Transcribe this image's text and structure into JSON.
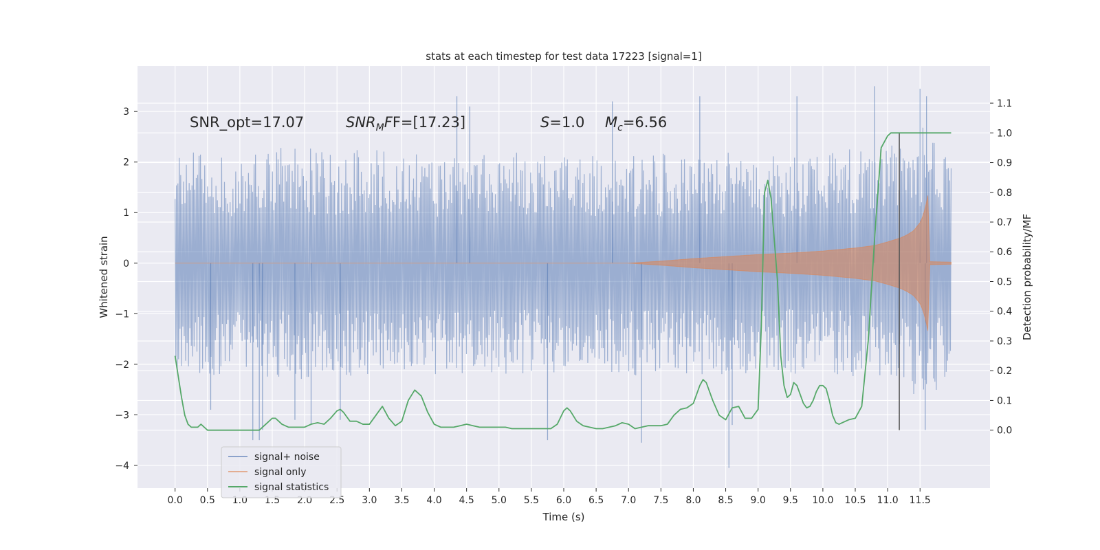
{
  "chart_data": {
    "type": "line",
    "title": "stats at each timestep for test data 17223 [signal=1]",
    "xlabel": "Time (s)",
    "ylabel": "Whitened strain",
    "ylabel_right": "Detection probability/MF",
    "xlim": [
      -0.58,
      12.58
    ],
    "ylim": [
      -4.45,
      3.9
    ],
    "ylim_right": [
      -0.195,
      1.225
    ],
    "x_ticks": [
      0.0,
      0.5,
      1.0,
      1.5,
      2.0,
      2.5,
      3.0,
      3.5,
      4.0,
      4.5,
      5.0,
      5.5,
      6.0,
      6.5,
      7.0,
      7.5,
      8.0,
      8.5,
      9.0,
      9.5,
      10.0,
      10.5,
      11.0,
      11.5
    ],
    "x_tick_labels": [
      "0.0",
      "0.5",
      "1.0",
      "1.5",
      "2.0",
      "2.5",
      "3.0",
      "3.5",
      "4.0",
      "4.5",
      "5.0",
      "5.5",
      "6.0",
      "6.5",
      "7.0",
      "7.5",
      "8.0",
      "8.5",
      "9.0",
      "9.5",
      "10.0",
      "10.5",
      "11.0",
      "11.5"
    ],
    "y_ticks": [
      -4,
      -3,
      -2,
      -1,
      0,
      1,
      2,
      3
    ],
    "y_tick_labels": [
      "−4",
      "−3",
      "−2",
      "−1",
      "0",
      "1",
      "2",
      "3"
    ],
    "y_right_ticks": [
      0.0,
      0.1,
      0.2,
      0.3,
      0.4,
      0.5,
      0.6,
      0.7,
      0.8,
      0.9,
      1.0,
      1.1
    ],
    "y_right_tick_labels": [
      "0.0",
      "0.1",
      "0.2",
      "0.3",
      "0.4",
      "0.5",
      "0.6",
      "0.7",
      "0.8",
      "0.9",
      "1.0",
      "1.1"
    ],
    "grid": true,
    "legend_position": "lower-left",
    "annotations": {
      "snr_opt": "SNR_opt=17.07",
      "snr_mf_prefix": "SNR",
      "snr_mf_sub": "M",
      "snr_mf_suffix": "F=[17.23]",
      "s_var": "S",
      "s_value": "=1.0",
      "mc_var": "M",
      "mc_sub": "c",
      "mc_value": "=6.56"
    },
    "vertical_marker_x": 11.18,
    "series": [
      {
        "name": "signal+ noise",
        "color": "#4c72b0",
        "t_range": [
          0.0,
          11.98
        ],
        "envelope": {
          "x": [
            0.0,
            2.0,
            4.0,
            6.0,
            8.0,
            9.0,
            10.0,
            10.5,
            11.0,
            11.2,
            11.4,
            11.55,
            11.65,
            11.75,
            11.98
          ],
          "upper": [
            2.0,
            2.1,
            2.0,
            2.0,
            2.0,
            2.0,
            2.05,
            2.05,
            2.1,
            2.15,
            2.3,
            2.5,
            2.6,
            2.3,
            2.0
          ],
          "lower": [
            -2.0,
            -2.1,
            -2.0,
            -2.0,
            -2.05,
            -2.0,
            -2.05,
            -2.05,
            -2.1,
            -2.15,
            -2.35,
            -2.5,
            -2.6,
            -2.3,
            -2.0
          ]
        },
        "spikes": [
          {
            "x": 0.55,
            "y": -2.9
          },
          {
            "x": 1.2,
            "y": -3.5
          },
          {
            "x": 1.3,
            "y": -3.5
          },
          {
            "x": 1.35,
            "y": -3.3
          },
          {
            "x": 1.85,
            "y": -3.1
          },
          {
            "x": 2.1,
            "y": -3.2
          },
          {
            "x": 2.55,
            "y": -3.1
          },
          {
            "x": 4.35,
            "y": 3.3
          },
          {
            "x": 4.55,
            "y": 3.1
          },
          {
            "x": 5.75,
            "y": -3.5
          },
          {
            "x": 6.75,
            "y": 3.2
          },
          {
            "x": 7.2,
            "y": -3.55
          },
          {
            "x": 8.1,
            "y": 3.3
          },
          {
            "x": 8.55,
            "y": -4.05
          },
          {
            "x": 8.6,
            "y": -3.2
          },
          {
            "x": 9.6,
            "y": 3.3
          },
          {
            "x": 10.8,
            "y": 3.5
          },
          {
            "x": 11.5,
            "y": 3.45
          },
          {
            "x": 11.58,
            "y": -3.3
          },
          {
            "x": 11.6,
            "y": 3.3
          }
        ]
      },
      {
        "name": "signal only",
        "color": "#dd8452",
        "t_range": [
          0.0,
          11.98
        ],
        "envelope": {
          "x": [
            0.0,
            7.0,
            7.5,
            8.0,
            8.5,
            9.0,
            9.5,
            10.0,
            10.5,
            10.8,
            11.0,
            11.2,
            11.3,
            11.4,
            11.5,
            11.55,
            11.6,
            11.63,
            11.65,
            11.98
          ],
          "amp": [
            0.0,
            0.0,
            0.04,
            0.09,
            0.13,
            0.17,
            0.2,
            0.24,
            0.3,
            0.35,
            0.42,
            0.5,
            0.56,
            0.64,
            0.8,
            0.95,
            1.2,
            1.4,
            0.03,
            0.02
          ]
        }
      },
      {
        "name": "signal statistics",
        "color": "#55a868",
        "x": [
          0.0,
          0.05,
          0.1,
          0.15,
          0.2,
          0.25,
          0.3,
          0.35,
          0.4,
          0.45,
          0.5,
          0.6,
          0.7,
          0.8,
          0.9,
          1.0,
          1.1,
          1.2,
          1.3,
          1.4,
          1.5,
          1.55,
          1.6,
          1.65,
          1.7,
          1.75,
          1.8,
          1.85,
          1.9,
          2.0,
          2.1,
          2.2,
          2.3,
          2.4,
          2.5,
          2.55,
          2.6,
          2.7,
          2.8,
          2.9,
          3.0,
          3.1,
          3.2,
          3.3,
          3.4,
          3.5,
          3.6,
          3.7,
          3.8,
          3.9,
          4.0,
          4.1,
          4.2,
          4.3,
          4.4,
          4.5,
          4.6,
          4.7,
          4.8,
          4.9,
          5.0,
          5.1,
          5.2,
          5.3,
          5.4,
          5.5,
          5.6,
          5.7,
          5.8,
          5.9,
          6.0,
          6.05,
          6.1,
          6.2,
          6.3,
          6.4,
          6.5,
          6.6,
          6.7,
          6.8,
          6.9,
          7.0,
          7.1,
          7.2,
          7.3,
          7.4,
          7.5,
          7.6,
          7.7,
          7.8,
          7.9,
          8.0,
          8.1,
          8.15,
          8.2,
          8.3,
          8.4,
          8.5,
          8.6,
          8.7,
          8.8,
          8.9,
          9.0,
          9.05,
          9.1,
          9.15,
          9.2,
          9.3,
          9.35,
          9.4,
          9.45,
          9.5,
          9.55,
          9.6,
          9.65,
          9.7,
          9.75,
          9.8,
          9.85,
          9.9,
          9.95,
          10.0,
          10.05,
          10.1,
          10.15,
          10.2,
          10.25,
          10.3,
          10.35,
          10.4,
          10.5,
          10.6,
          10.7,
          10.8,
          10.9,
          11.0,
          11.05,
          11.1,
          11.15,
          11.2,
          11.25,
          11.3,
          11.35,
          11.4,
          11.5,
          11.6,
          11.7,
          11.8,
          11.9,
          11.98
        ],
        "y": [
          0.25,
          0.18,
          0.11,
          0.05,
          0.02,
          0.01,
          0.01,
          0.01,
          0.02,
          0.01,
          0.0,
          0.0,
          0.0,
          0.0,
          0.0,
          0.0,
          0.0,
          0.0,
          0.0,
          0.02,
          0.04,
          0.04,
          0.03,
          0.02,
          0.015,
          0.01,
          0.01,
          0.01,
          0.01,
          0.01,
          0.02,
          0.025,
          0.02,
          0.04,
          0.065,
          0.07,
          0.06,
          0.03,
          0.03,
          0.02,
          0.02,
          0.05,
          0.08,
          0.04,
          0.015,
          0.03,
          0.1,
          0.135,
          0.115,
          0.06,
          0.02,
          0.01,
          0.01,
          0.01,
          0.015,
          0.02,
          0.015,
          0.01,
          0.01,
          0.01,
          0.01,
          0.01,
          0.005,
          0.005,
          0.005,
          0.005,
          0.005,
          0.005,
          0.005,
          0.02,
          0.065,
          0.075,
          0.065,
          0.03,
          0.015,
          0.01,
          0.005,
          0.005,
          0.01,
          0.015,
          0.025,
          0.02,
          0.005,
          0.01,
          0.015,
          0.015,
          0.015,
          0.02,
          0.05,
          0.07,
          0.075,
          0.09,
          0.15,
          0.17,
          0.16,
          0.1,
          0.05,
          0.035,
          0.075,
          0.08,
          0.04,
          0.04,
          0.07,
          0.35,
          0.8,
          0.84,
          0.78,
          0.5,
          0.25,
          0.15,
          0.11,
          0.12,
          0.16,
          0.15,
          0.12,
          0.09,
          0.075,
          0.08,
          0.1,
          0.13,
          0.15,
          0.15,
          0.14,
          0.1,
          0.05,
          0.025,
          0.02,
          0.025,
          0.03,
          0.035,
          0.04,
          0.08,
          0.3,
          0.65,
          0.95,
          0.99,
          1.0,
          1.0,
          1.0,
          1.0,
          1.0,
          1.0,
          1.0,
          1.0,
          1.0,
          1.0,
          1.0,
          1.0,
          1.0,
          1.0
        ]
      }
    ]
  }
}
